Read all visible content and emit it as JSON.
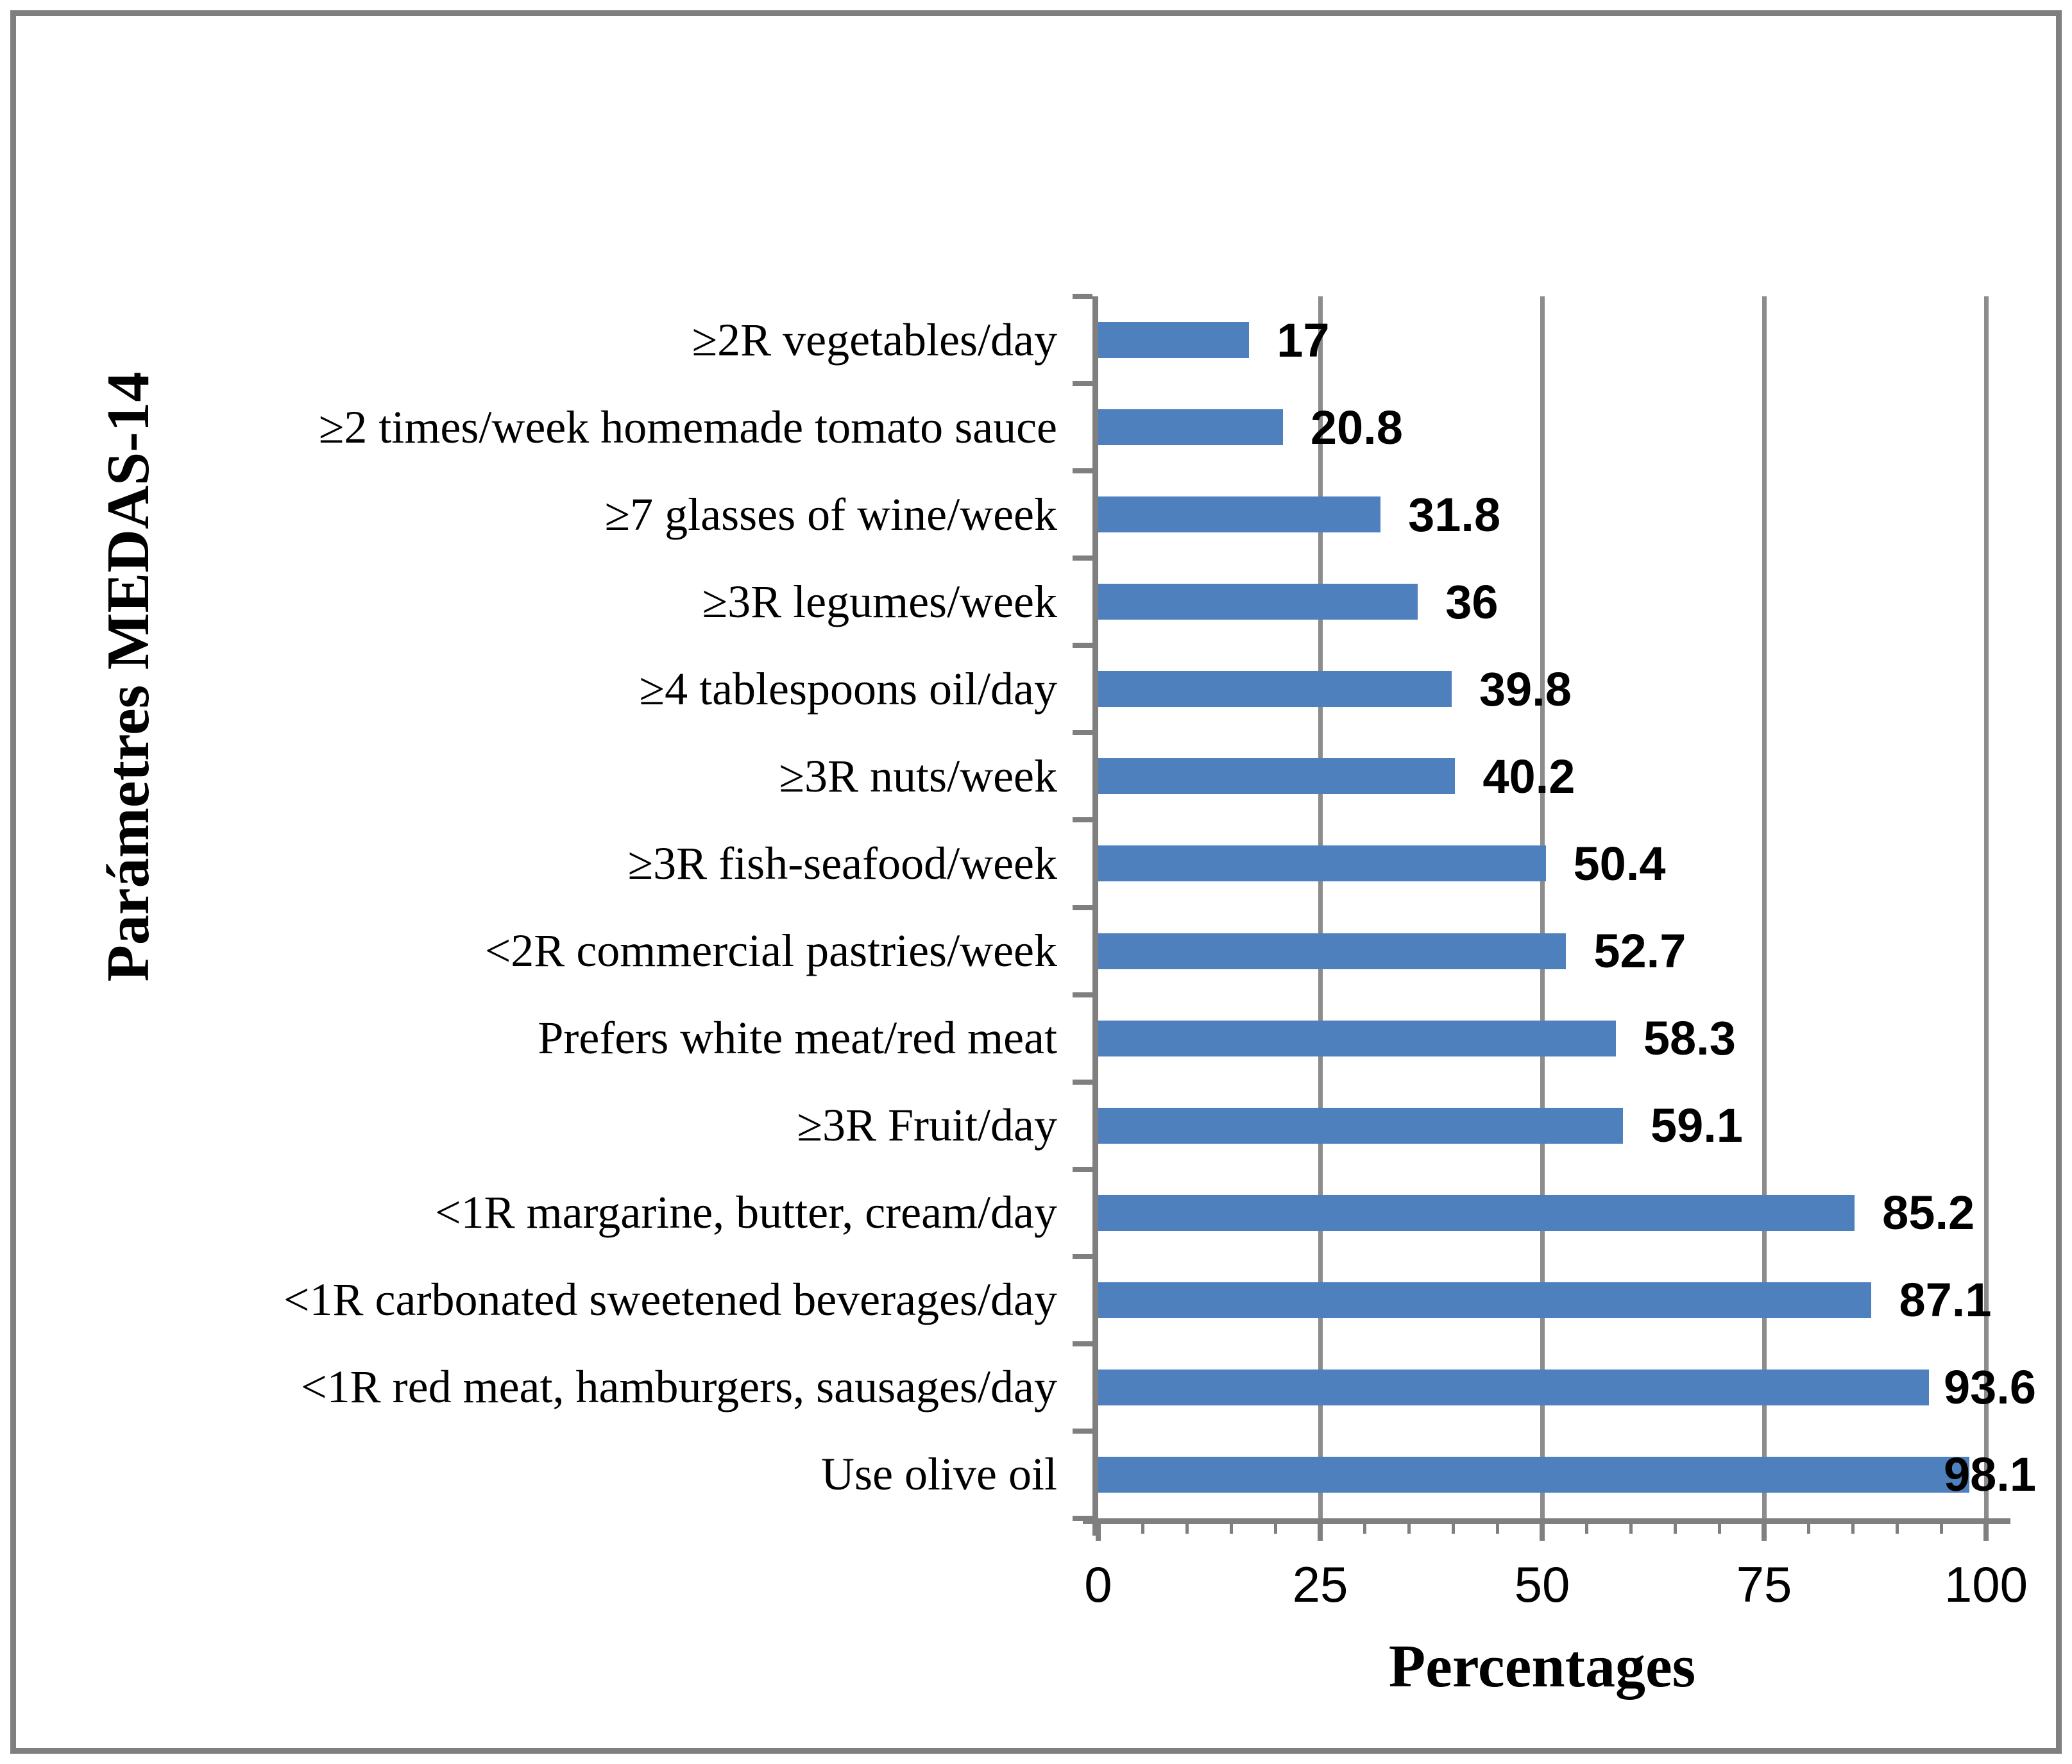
{
  "figure": {
    "background_color": "#ffffff",
    "border_color": "#7f7f7f"
  },
  "chart_data": {
    "type": "bar",
    "orientation": "horizontal",
    "title": "",
    "xlabel": "Percentages",
    "ylabel": "Parámetres MEDAS-14",
    "categories": [
      "≥2R vegetables/day",
      "≥2 times/week homemade tomato sauce",
      "≥7 glasses of wine/week",
      "≥3R legumes/week",
      "≥4 tablespoons oil/day",
      "≥3R nuts/week",
      "≥3R fish-seafood/week",
      "<2R commercial pastries/week",
      "Prefers white meat/red meat",
      "≥3R Fruit/day",
      "<1R margarine, butter, cream/day",
      "<1R carbonated sweetened beverages/day",
      "<1R red meat, hamburgers, sausages/day",
      "Use olive oil"
    ],
    "values": [
      17,
      20.8,
      31.8,
      36,
      39.8,
      40.2,
      50.4,
      52.7,
      58.3,
      59.1,
      85.2,
      87.1,
      93.6,
      98.1
    ],
    "value_labels": [
      "17",
      "20.8",
      "31.8",
      "36",
      "39.8",
      "40.2",
      "50.4",
      "52.7",
      "58.3",
      "59.1",
      "85.2",
      "87.1",
      "93.6",
      "98.1"
    ],
    "xlim": [
      0,
      100
    ],
    "xticks": [
      0,
      25,
      50,
      75,
      100
    ],
    "xtick_labels": [
      "0",
      "25",
      "50",
      "75",
      "100"
    ],
    "minor_tick_step": 5,
    "grid": "vertical lines at major ticks",
    "legend": "none",
    "bar_color": "#4e80bd",
    "axis_color": "#7f7f7f",
    "gridline_color": "#8c8c8c",
    "label_color": "#000000"
  }
}
